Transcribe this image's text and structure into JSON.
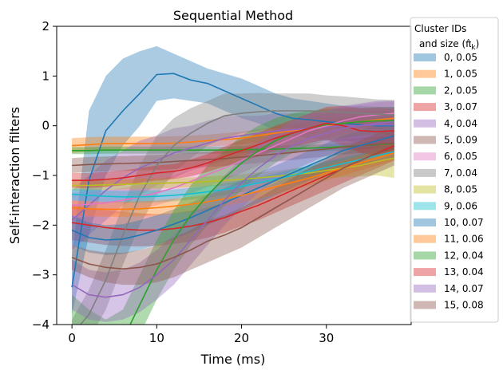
{
  "chart_data": {
    "type": "line",
    "title": "Sequential Method",
    "xlabel": "Time (ms)",
    "ylabel": "Self-interaction filters",
    "xlim": [
      -1.8,
      40
    ],
    "ylim": [
      -4,
      2
    ],
    "xticks": [
      0,
      10,
      20,
      30
    ],
    "yticks": [
      -4,
      -3,
      -2,
      -1,
      0,
      1,
      2
    ],
    "ytick_labels": [
      "−4",
      "−3",
      "−2",
      "−1",
      "0",
      "1",
      "2"
    ],
    "grid": false,
    "legend": {
      "title_line1": "Cluster IDs",
      "title_line2": "and size (π̂",
      "title_sub": "k",
      "title_end": ")",
      "placement": "right"
    },
    "x": [
      0,
      2,
      4,
      6,
      8,
      10,
      12,
      14,
      16,
      18,
      20,
      22,
      24,
      26,
      28,
      30,
      32,
      34,
      36,
      38
    ],
    "series": [
      {
        "name": "0, 0.05",
        "color": "#1f77b4",
        "mean": [
          -3.25,
          -1.1,
          -0.1,
          0.3,
          0.65,
          1.03,
          1.05,
          0.92,
          0.85,
          0.7,
          0.55,
          0.4,
          0.25,
          0.15,
          0.12,
          0.08,
          0.05,
          0.02,
          0.0,
          0.0
        ],
        "lower": [
          -3.8,
          -2.2,
          -1.0,
          -0.4,
          0.0,
          0.5,
          0.55,
          0.5,
          0.45,
          0.3,
          0.15,
          0.05,
          -0.1,
          -0.2,
          -0.25,
          -0.3,
          -0.3,
          -0.35,
          -0.35,
          -0.35
        ],
        "upper": [
          -2.6,
          0.3,
          1.0,
          1.35,
          1.5,
          1.6,
          1.45,
          1.3,
          1.15,
          1.05,
          0.95,
          0.8,
          0.65,
          0.55,
          0.5,
          0.45,
          0.4,
          0.4,
          0.38,
          0.38
        ]
      },
      {
        "name": "1, 0.05",
        "color": "#ff7f0e",
        "mean": [
          -0.4,
          -0.38,
          -0.36,
          -0.36,
          -0.36,
          -0.36,
          -0.35,
          -0.33,
          -0.3,
          -0.28,
          -0.25,
          -0.2,
          -0.15,
          -0.1,
          -0.05,
          0.0,
          0.05,
          0.08,
          0.12,
          0.15
        ],
        "lower": [
          -0.55,
          -0.52,
          -0.5,
          -0.5,
          -0.5,
          -0.5,
          -0.48,
          -0.45,
          -0.42,
          -0.4,
          -0.38,
          -0.33,
          -0.28,
          -0.22,
          -0.18,
          -0.13,
          -0.08,
          -0.03,
          0.0,
          0.02
        ],
        "upper": [
          -0.25,
          -0.23,
          -0.22,
          -0.22,
          -0.22,
          -0.22,
          -0.21,
          -0.2,
          -0.18,
          -0.15,
          -0.12,
          -0.07,
          -0.02,
          0.03,
          0.08,
          0.13,
          0.18,
          0.2,
          0.25,
          0.28
        ]
      },
      {
        "name": "2, 0.05",
        "color": "#2ca02c",
        "mean": [
          -0.5,
          -0.5,
          -0.49,
          -0.49,
          -0.49,
          -0.49,
          -0.49,
          -0.49,
          -0.49,
          -0.49,
          -0.48,
          -0.48,
          -0.47,
          -0.46,
          -0.45,
          -0.44,
          -0.42,
          -0.4,
          -0.38,
          -0.36
        ],
        "lower": [
          -0.57,
          -0.57,
          -0.56,
          -0.56,
          -0.56,
          -0.56,
          -0.56,
          -0.56,
          -0.56,
          -0.56,
          -0.55,
          -0.55,
          -0.54,
          -0.53,
          -0.52,
          -0.51,
          -0.5,
          -0.48,
          -0.46,
          -0.44
        ],
        "upper": [
          -0.43,
          -0.43,
          -0.42,
          -0.42,
          -0.42,
          -0.42,
          -0.42,
          -0.42,
          -0.42,
          -0.42,
          -0.41,
          -0.41,
          -0.4,
          -0.39,
          -0.38,
          -0.37,
          -0.35,
          -0.33,
          -0.31,
          -0.29
        ]
      },
      {
        "name": "3, 0.07",
        "color": "#d62728",
        "mean": [
          -1.95,
          -2.0,
          -2.05,
          -2.08,
          -2.1,
          -2.1,
          -2.07,
          -2.02,
          -1.95,
          -1.85,
          -1.72,
          -1.6,
          -1.45,
          -1.3,
          -1.15,
          -1.0,
          -0.85,
          -0.7,
          -0.55,
          -0.4
        ],
        "lower": [
          -2.3,
          -2.35,
          -2.4,
          -2.42,
          -2.43,
          -2.42,
          -2.38,
          -2.33,
          -2.25,
          -2.15,
          -2.02,
          -1.9,
          -1.75,
          -1.6,
          -1.45,
          -1.3,
          -1.15,
          -1.0,
          -0.85,
          -0.7
        ],
        "upper": [
          -1.6,
          -1.65,
          -1.7,
          -1.73,
          -1.76,
          -1.78,
          -1.76,
          -1.71,
          -1.65,
          -1.55,
          -1.42,
          -1.3,
          -1.15,
          -1.0,
          -0.85,
          -0.7,
          -0.55,
          -0.4,
          -0.25,
          -0.1
        ]
      },
      {
        "name": "4, 0.04",
        "color": "#9467bd",
        "mean": [
          -1.9,
          -1.6,
          -1.3,
          -1.05,
          -0.85,
          -0.7,
          -0.55,
          -0.45,
          -0.35,
          -0.25,
          -0.2,
          -0.15,
          -0.1,
          -0.08,
          -0.05,
          -0.03,
          0.0,
          0.0,
          0.02,
          0.02
        ],
        "lower": [
          -2.5,
          -2.2,
          -1.9,
          -1.6,
          -1.4,
          -1.2,
          -1.05,
          -0.9,
          -0.8,
          -0.7,
          -0.6,
          -0.5,
          -0.45,
          -0.4,
          -0.35,
          -0.32,
          -0.3,
          -0.28,
          -0.26,
          -0.25
        ],
        "upper": [
          -1.3,
          -1.0,
          -0.7,
          -0.5,
          -0.3,
          -0.2,
          -0.05,
          0.0,
          0.1,
          0.2,
          0.2,
          0.2,
          0.25,
          0.25,
          0.25,
          0.26,
          0.28,
          0.28,
          0.3,
          0.3
        ]
      },
      {
        "name": "5, 0.09",
        "color": "#8c564b",
        "mean": [
          -0.8,
          -0.78,
          -0.77,
          -0.76,
          -0.75,
          -0.74,
          -0.72,
          -0.7,
          -0.68,
          -0.66,
          -0.63,
          -0.6,
          -0.57,
          -0.54,
          -0.5,
          -0.47,
          -0.43,
          -0.4,
          -0.37,
          -0.35
        ],
        "lower": [
          -0.95,
          -0.93,
          -0.92,
          -0.91,
          -0.9,
          -0.89,
          -0.87,
          -0.85,
          -0.83,
          -0.81,
          -0.78,
          -0.75,
          -0.72,
          -0.69,
          -0.65,
          -0.62,
          -0.58,
          -0.55,
          -0.52,
          -0.5
        ],
        "upper": [
          -0.65,
          -0.63,
          -0.62,
          -0.61,
          -0.6,
          -0.59,
          -0.57,
          -0.55,
          -0.53,
          -0.51,
          -0.48,
          -0.45,
          -0.42,
          -0.39,
          -0.35,
          -0.32,
          -0.28,
          -0.25,
          -0.22,
          -0.2
        ]
      },
      {
        "name": "6, 0.05",
        "color": "#e377c2",
        "mean": [
          -1.6,
          -1.58,
          -1.55,
          -1.5,
          -1.43,
          -1.35,
          -1.25,
          -1.12,
          -0.98,
          -0.85,
          -0.7,
          -0.55,
          -0.4,
          -0.25,
          -0.1,
          0.0,
          0.1,
          0.18,
          0.22,
          0.25
        ],
        "lower": [
          -1.85,
          -1.83,
          -1.8,
          -1.75,
          -1.68,
          -1.6,
          -1.5,
          -1.37,
          -1.23,
          -1.1,
          -0.95,
          -0.8,
          -0.65,
          -0.5,
          -0.35,
          -0.25,
          -0.15,
          -0.07,
          -0.03,
          0.0
        ],
        "upper": [
          -1.35,
          -1.33,
          -1.3,
          -1.25,
          -1.18,
          -1.1,
          -1.0,
          -0.87,
          -0.73,
          -0.6,
          -0.45,
          -0.3,
          -0.15,
          0.0,
          0.15,
          0.25,
          0.35,
          0.43,
          0.47,
          0.5
        ]
      },
      {
        "name": "7, 0.04",
        "color": "#7f7f7f",
        "mean": [
          -4.2,
          -3.8,
          -3.1,
          -2.2,
          -1.4,
          -0.8,
          -0.4,
          -0.15,
          0.05,
          0.2,
          0.25,
          0.28,
          0.3,
          0.3,
          0.3,
          0.28,
          0.27,
          0.25,
          0.23,
          0.22
        ],
        "lower": [
          -4.5,
          -4.3,
          -3.7,
          -2.8,
          -2.0,
          -1.4,
          -0.95,
          -0.65,
          -0.4,
          -0.25,
          -0.15,
          -0.1,
          -0.05,
          -0.05,
          -0.05,
          -0.05,
          -0.05,
          -0.06,
          -0.07,
          -0.08
        ],
        "upper": [
          -3.9,
          -3.3,
          -2.5,
          -1.6,
          -0.8,
          -0.2,
          0.15,
          0.35,
          0.5,
          0.65,
          0.65,
          0.66,
          0.65,
          0.65,
          0.65,
          0.61,
          0.59,
          0.56,
          0.53,
          0.52
        ]
      },
      {
        "name": "8, 0.05",
        "color": "#bcbd22",
        "mean": [
          -1.2,
          -1.2,
          -1.19,
          -1.18,
          -1.17,
          -1.16,
          -1.15,
          -1.14,
          -1.12,
          -1.1,
          -1.08,
          -1.05,
          -1.02,
          -0.98,
          -0.95,
          -0.9,
          -0.85,
          -0.8,
          -0.72,
          -0.65
        ],
        "lower": [
          -1.3,
          -1.3,
          -1.29,
          -1.28,
          -1.27,
          -1.26,
          -1.25,
          -1.24,
          -1.22,
          -1.2,
          -1.18,
          -1.16,
          -1.13,
          -1.1,
          -1.08,
          -1.05,
          -1.03,
          -1.02,
          -1.0,
          -1.05
        ],
        "upper": [
          -1.1,
          -1.1,
          -1.09,
          -1.08,
          -1.07,
          -1.06,
          -1.05,
          -1.04,
          -1.02,
          -1.0,
          -0.98,
          -0.94,
          -0.91,
          -0.86,
          -0.82,
          -0.75,
          -0.67,
          -0.58,
          -0.44,
          -0.25
        ]
      },
      {
        "name": "9, 0.06",
        "color": "#17becf",
        "mean": [
          -1.38,
          -1.4,
          -1.42,
          -1.43,
          -1.43,
          -1.42,
          -1.4,
          -1.37,
          -1.33,
          -1.28,
          -1.22,
          -1.15,
          -1.08,
          -1.0,
          -0.92,
          -0.84,
          -0.76,
          -0.68,
          -0.6,
          -0.52
        ],
        "lower": [
          -1.5,
          -1.52,
          -1.54,
          -1.55,
          -1.55,
          -1.54,
          -1.52,
          -1.49,
          -1.45,
          -1.4,
          -1.34,
          -1.27,
          -1.2,
          -1.12,
          -1.04,
          -0.96,
          -0.88,
          -0.8,
          -0.72,
          -0.64
        ],
        "upper": [
          -1.26,
          -1.28,
          -1.3,
          -1.31,
          -1.31,
          -1.3,
          -1.28,
          -1.25,
          -1.21,
          -1.16,
          -1.1,
          -1.03,
          -0.96,
          -0.88,
          -0.8,
          -0.72,
          -0.64,
          -0.56,
          -0.48,
          -0.4
        ]
      },
      {
        "name": "10, 0.07",
        "color": "#1f77b4",
        "mean": [
          -2.1,
          -2.25,
          -2.3,
          -2.28,
          -2.2,
          -2.1,
          -1.98,
          -1.85,
          -1.7,
          -1.55,
          -1.4,
          -1.25,
          -1.1,
          -0.95,
          -0.8,
          -0.65,
          -0.5,
          -0.4,
          -0.3,
          -0.2
        ],
        "lower": [
          -2.4,
          -2.55,
          -2.6,
          -2.58,
          -2.5,
          -2.4,
          -2.28,
          -2.15,
          -2.0,
          -1.85,
          -1.7,
          -1.55,
          -1.4,
          -1.25,
          -1.1,
          -0.95,
          -0.8,
          -0.7,
          -0.6,
          -0.5
        ],
        "upper": [
          -1.8,
          -1.95,
          -2.0,
          -1.98,
          -1.9,
          -1.8,
          -1.68,
          -1.55,
          -1.4,
          -1.25,
          -1.1,
          -0.95,
          -0.8,
          -0.65,
          -0.5,
          -0.35,
          -0.2,
          -0.1,
          0.0,
          0.1
        ]
      },
      {
        "name": "11, 0.06",
        "color": "#ff7f0e",
        "mean": [
          -1.65,
          -1.67,
          -1.68,
          -1.68,
          -1.67,
          -1.65,
          -1.62,
          -1.58,
          -1.53,
          -1.47,
          -1.4,
          -1.32,
          -1.23,
          -1.14,
          -1.05,
          -0.95,
          -0.85,
          -0.75,
          -0.65,
          -0.55
        ],
        "lower": [
          -1.8,
          -1.82,
          -1.83,
          -1.83,
          -1.82,
          -1.8,
          -1.77,
          -1.73,
          -1.68,
          -1.62,
          -1.55,
          -1.47,
          -1.38,
          -1.29,
          -1.2,
          -1.1,
          -1.0,
          -0.9,
          -0.8,
          -0.7
        ],
        "upper": [
          -1.5,
          -1.52,
          -1.53,
          -1.53,
          -1.52,
          -1.5,
          -1.47,
          -1.43,
          -1.38,
          -1.32,
          -1.25,
          -1.17,
          -1.08,
          -0.99,
          -0.9,
          -0.8,
          -0.7,
          -0.6,
          -0.5,
          -0.4
        ]
      },
      {
        "name": "12, 0.04",
        "color": "#2ca02c",
        "mean": [
          -4.6,
          -4.8,
          -4.7,
          -4.3,
          -3.6,
          -2.9,
          -2.3,
          -1.8,
          -1.4,
          -1.05,
          -0.75,
          -0.5,
          -0.3,
          -0.15,
          -0.05,
          0.02,
          0.05,
          0.08,
          0.1,
          0.1
        ],
        "lower": [
          -5.0,
          -5.3,
          -5.2,
          -4.8,
          -4.2,
          -3.5,
          -2.9,
          -2.4,
          -2.0,
          -1.6,
          -1.3,
          -1.0,
          -0.75,
          -0.55,
          -0.4,
          -0.3,
          -0.25,
          -0.2,
          -0.18,
          -0.18
        ],
        "upper": [
          -3.4,
          -3.7,
          -3.9,
          -3.7,
          -3.0,
          -2.3,
          -1.7,
          -1.2,
          -0.8,
          -0.5,
          -0.2,
          0.0,
          0.15,
          0.25,
          0.3,
          0.34,
          0.35,
          0.36,
          0.38,
          0.38
        ]
      },
      {
        "name": "13, 0.04",
        "color": "#d62728",
        "mean": [
          -1.1,
          -1.1,
          -1.08,
          -1.05,
          -1.0,
          -0.95,
          -0.92,
          -0.85,
          -0.75,
          -0.62,
          -0.5,
          -0.38,
          -0.25,
          -0.15,
          -0.05,
          0.05,
          0.0,
          -0.1,
          -0.12,
          -0.1
        ],
        "lower": [
          -1.25,
          -1.25,
          -1.23,
          -1.2,
          -1.15,
          -1.1,
          -1.07,
          -1.02,
          -0.93,
          -0.82,
          -0.72,
          -0.62,
          -0.5,
          -0.42,
          -0.35,
          -0.28,
          -0.4,
          -0.55,
          -0.6,
          -0.55
        ],
        "upper": [
          -0.95,
          -0.95,
          -0.93,
          -0.9,
          -0.85,
          -0.8,
          -0.77,
          -0.68,
          -0.57,
          -0.42,
          -0.28,
          -0.14,
          0.0,
          0.12,
          0.25,
          0.38,
          0.4,
          0.35,
          0.36,
          0.35
        ]
      },
      {
        "name": "14, 0.07",
        "color": "#9467bd",
        "mean": [
          -3.2,
          -3.4,
          -3.45,
          -3.4,
          -3.25,
          -3.0,
          -2.7,
          -2.3,
          -1.9,
          -1.5,
          -1.15,
          -0.85,
          -0.6,
          -0.4,
          -0.25,
          -0.15,
          -0.05,
          0.0,
          0.05,
          0.08
        ],
        "lower": [
          -3.7,
          -3.9,
          -3.95,
          -3.9,
          -3.75,
          -3.5,
          -3.2,
          -2.8,
          -2.4,
          -2.0,
          -1.65,
          -1.35,
          -1.1,
          -0.9,
          -0.75,
          -0.6,
          -0.5,
          -0.45,
          -0.4,
          -0.35
        ],
        "upper": [
          -2.7,
          -2.9,
          -2.95,
          -2.9,
          -2.75,
          -2.5,
          -2.2,
          -1.8,
          -1.4,
          -1.0,
          -0.65,
          -0.35,
          -0.1,
          0.1,
          0.25,
          0.3,
          0.4,
          0.45,
          0.5,
          0.5
        ]
      },
      {
        "name": "15, 0.08",
        "color": "#8c564b",
        "mean": [
          -2.65,
          -2.78,
          -2.85,
          -2.88,
          -2.85,
          -2.78,
          -2.65,
          -2.5,
          -2.32,
          -2.2,
          -2.05,
          -1.85,
          -1.65,
          -1.45,
          -1.25,
          -1.05,
          -0.85,
          -0.7,
          -0.55,
          -0.45
        ],
        "lower": [
          -2.9,
          -3.05,
          -3.15,
          -3.2,
          -3.2,
          -3.15,
          -3.05,
          -2.9,
          -2.75,
          -2.6,
          -2.45,
          -2.25,
          -2.05,
          -1.85,
          -1.65,
          -1.45,
          -1.25,
          -1.1,
          -0.95,
          -0.8
        ],
        "upper": [
          -2.4,
          -2.5,
          -2.55,
          -2.56,
          -2.5,
          -2.41,
          -2.25,
          -2.1,
          -1.9,
          -1.8,
          -1.65,
          -1.45,
          -1.25,
          -1.05,
          -0.85,
          -0.65,
          -0.45,
          -0.3,
          -0.15,
          -0.1
        ]
      }
    ]
  }
}
